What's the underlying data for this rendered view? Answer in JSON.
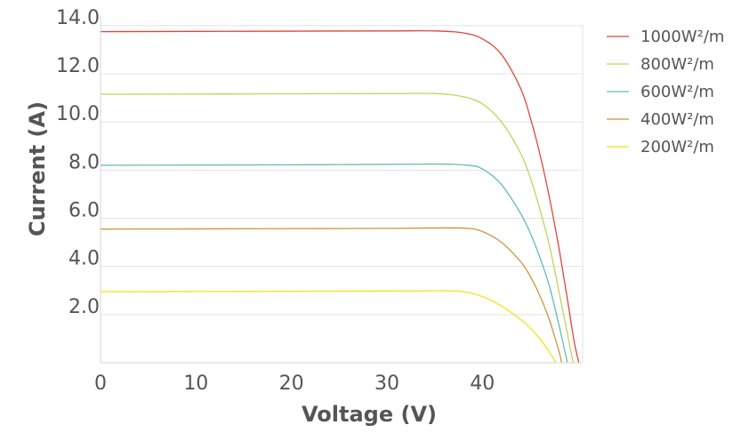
{
  "chart_data": {
    "type": "line",
    "title": "",
    "xlabel": "Voltage (V)",
    "ylabel": "Current (A)",
    "xlim": [
      0,
      50.5
    ],
    "ylim": [
      0,
      14.4
    ],
    "x_ticks": [
      0,
      10,
      20,
      30,
      40
    ],
    "x_tick_labels": [
      "0",
      "10",
      "20",
      "30",
      "40"
    ],
    "y_ticks": [
      2,
      4,
      6,
      8,
      10,
      12,
      14
    ],
    "y_tick_labels": [
      "2.0",
      "4.0",
      "6.0",
      "8.0",
      "10.0",
      "12.0",
      "14.0"
    ],
    "grid": "horizontal",
    "legend_position": "top-right",
    "series": [
      {
        "name": "1000W²/m",
        "color": "#e0453a",
        "points": [
          [
            0,
            13.75
          ],
          [
            10,
            13.76
          ],
          [
            20,
            13.77
          ],
          [
            30,
            13.78
          ],
          [
            35,
            13.78
          ],
          [
            38,
            13.7
          ],
          [
            40,
            13.45
          ],
          [
            42,
            12.8
          ],
          [
            44,
            11.4
          ],
          [
            45,
            10.2
          ],
          [
            46,
            8.7
          ],
          [
            47,
            6.9
          ],
          [
            48,
            4.8
          ],
          [
            49,
            2.4
          ],
          [
            49.6,
            0.9
          ],
          [
            50.1,
            0
          ]
        ]
      },
      {
        "name": "800W²/m",
        "color": "#c4d25a",
        "points": [
          [
            0,
            11.15
          ],
          [
            10,
            11.16
          ],
          [
            20,
            11.17
          ],
          [
            30,
            11.18
          ],
          [
            35,
            11.18
          ],
          [
            38,
            11.05
          ],
          [
            40,
            10.75
          ],
          [
            42,
            10.0
          ],
          [
            44,
            8.7
          ],
          [
            45,
            7.7
          ],
          [
            46,
            6.4
          ],
          [
            47,
            4.9
          ],
          [
            48,
            3.0
          ],
          [
            49,
            1.0
          ],
          [
            49.5,
            0
          ]
        ]
      },
      {
        "name": "600W²/m",
        "color": "#5fbcb5",
        "points": [
          [
            0,
            8.2
          ],
          [
            10,
            8.21
          ],
          [
            20,
            8.22
          ],
          [
            30,
            8.24
          ],
          [
            36,
            8.25
          ],
          [
            38.5,
            8.2
          ],
          [
            40,
            8.05
          ],
          [
            42,
            7.4
          ],
          [
            44,
            6.2
          ],
          [
            45,
            5.4
          ],
          [
            46,
            4.4
          ],
          [
            47,
            3.2
          ],
          [
            48,
            1.6
          ],
          [
            48.9,
            0
          ]
        ]
      },
      {
        "name": "400W²/m",
        "color": "#c9973a",
        "points": [
          [
            0,
            5.55
          ],
          [
            10,
            5.56
          ],
          [
            20,
            5.57
          ],
          [
            30,
            5.58
          ],
          [
            36,
            5.6
          ],
          [
            38.5,
            5.58
          ],
          [
            40,
            5.45
          ],
          [
            42,
            5.0
          ],
          [
            44,
            4.2
          ],
          [
            45,
            3.6
          ],
          [
            46,
            2.8
          ],
          [
            47,
            1.8
          ],
          [
            48,
            0.5
          ],
          [
            48.3,
            0
          ]
        ]
      },
      {
        "name": "200W²/m",
        "color": "#f2e41c",
        "points": [
          [
            0,
            2.95
          ],
          [
            10,
            2.96
          ],
          [
            20,
            2.97
          ],
          [
            30,
            2.98
          ],
          [
            36,
            2.99
          ],
          [
            38,
            2.95
          ],
          [
            40,
            2.75
          ],
          [
            42,
            2.35
          ],
          [
            44,
            1.8
          ],
          [
            45,
            1.45
          ],
          [
            46,
            1.0
          ],
          [
            47,
            0.45
          ],
          [
            47.7,
            0
          ]
        ]
      }
    ]
  }
}
